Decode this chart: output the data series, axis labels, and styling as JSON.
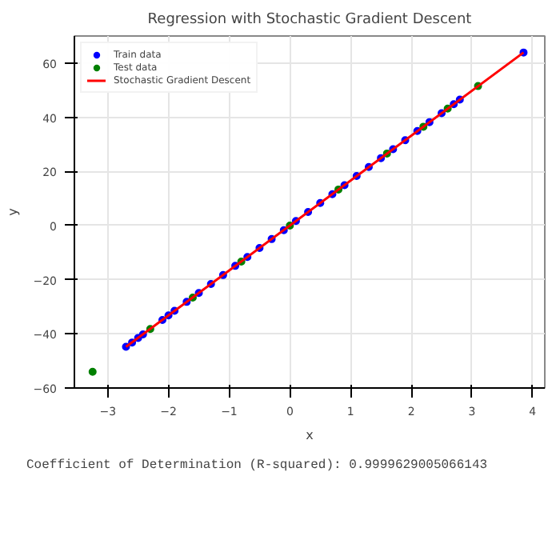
{
  "chart_data": {
    "type": "scatter",
    "title": "Regression with Stochastic Gradient Descent",
    "xlabel": "x",
    "ylabel": "y",
    "annotations": [
      "Coefficient of Determination (R-squared): 0.9999629005066143"
    ],
    "xlim": [
      -3.55,
      4.2
    ],
    "ylim": [
      -60,
      70
    ],
    "xticks": [
      -3,
      -2,
      -1,
      0,
      1,
      2,
      3,
      4
    ],
    "yticks": [
      -60,
      -40,
      -20,
      0,
      20,
      40,
      60
    ],
    "grid": true,
    "legend": "top left",
    "series": [
      {
        "name": "Train data",
        "color": "#0000ff",
        "marker": "circle",
        "x": [
          -2.7,
          -2.6,
          -2.5,
          -2.42,
          -2.1,
          -2.0,
          -1.9,
          -1.7,
          -1.5,
          -1.3,
          -1.1,
          -0.9,
          -0.7,
          -0.5,
          -0.3,
          -0.1,
          0.1,
          0.3,
          0.5,
          0.7,
          0.9,
          1.1,
          1.3,
          1.5,
          1.7,
          1.9,
          2.1,
          2.3,
          2.5,
          2.7,
          2.8,
          3.85
        ],
        "values": [
          -44.8,
          -43.2,
          -41.5,
          -40.2,
          -34.9,
          -33.2,
          -31.5,
          -28.2,
          -24.9,
          -21.6,
          -18.3,
          -14.9,
          -11.6,
          -8.3,
          -5.0,
          -1.7,
          1.7,
          5.0,
          8.3,
          11.6,
          14.9,
          18.3,
          21.6,
          24.9,
          28.2,
          31.5,
          34.9,
          38.2,
          41.5,
          44.8,
          46.5,
          63.9
        ]
      },
      {
        "name": "Test data",
        "color": "#008000",
        "marker": "circle",
        "x": [
          -3.25,
          -2.3,
          -1.6,
          -0.8,
          0,
          0.8,
          1.6,
          2.2,
          2.6,
          3.1
        ],
        "values": [
          -54,
          -38.2,
          -26.6,
          -13.3,
          0,
          13.3,
          26.6,
          36.5,
          43.2,
          51.5
        ]
      },
      {
        "name": "Stochastic Gradient Descent",
        "type": "line",
        "color": "#ff0000",
        "x": [
          -2.7,
          3.85
        ],
        "values": [
          -44.8,
          63.9
        ]
      }
    ]
  }
}
